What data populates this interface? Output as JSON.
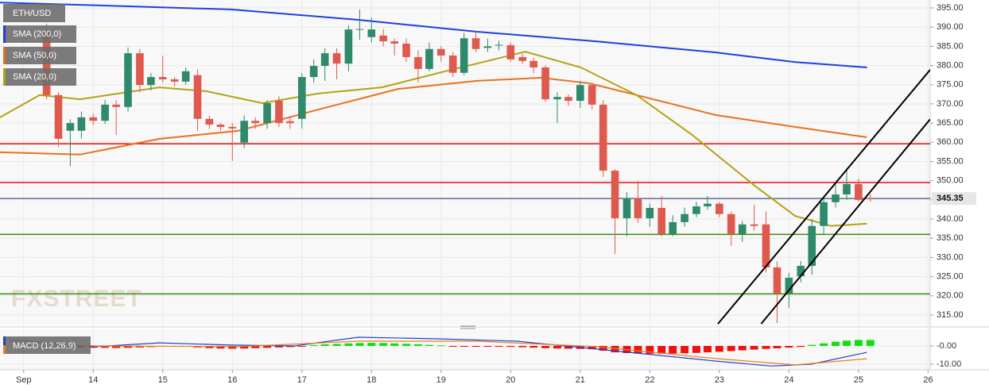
{
  "chart_data": [
    {
      "type": "candlestick",
      "title": "ETH/USD",
      "watermark": "FXSTREET",
      "x": [
        13.33,
        13.5,
        13.67,
        13.83,
        14,
        14.17,
        14.33,
        14.5,
        14.67,
        14.83,
        15,
        15.17,
        15.33,
        15.5,
        15.67,
        15.83,
        16,
        16.17,
        16.33,
        16.5,
        16.67,
        16.83,
        17,
        17.17,
        17.33,
        17.5,
        17.67,
        17.83,
        18,
        18.17,
        18.33,
        18.5,
        18.67,
        18.83,
        19,
        19.17,
        19.33,
        19.5,
        19.67,
        19.83,
        20,
        20.17,
        20.33,
        20.5,
        20.67,
        20.83,
        21,
        21.17,
        21.33,
        21.5,
        21.67,
        21.83,
        22,
        22.17,
        22.33,
        22.5,
        22.67,
        22.83,
        23,
        23.17,
        23.33,
        23.5,
        23.67,
        23.83,
        24,
        24.17,
        24.33,
        24.5,
        24.67,
        24.83,
        25,
        25.17
      ],
      "open": [
        388.8,
        372.3,
        363.0,
        363.0,
        366.5,
        365.6,
        369.8,
        369.2,
        383.2,
        374.9,
        377.0,
        376.4,
        375.8,
        377.5,
        366.1,
        364.6,
        364.0,
        359.9,
        365.6,
        365.0,
        370.8,
        365.5,
        366.1,
        377.0,
        379.9,
        383.2,
        380.5,
        389.3,
        387.4,
        387.8,
        386.3,
        385.7,
        382.2,
        379.1,
        384.3,
        382.6,
        378.1,
        387.1,
        384.6,
        385.2,
        385.3,
        382.2,
        381.2,
        379.5,
        371.2,
        371.8,
        370.8,
        374.9,
        369.8,
        352.6,
        340.2,
        345.4,
        340.2,
        342.9,
        336.1,
        339.2,
        341.3,
        343.3,
        344.0,
        341.3,
        336.1,
        338.6,
        338.6,
        327.4,
        320.6,
        325.1,
        327.8,
        338.2,
        344.4,
        346.4,
        349.1,
        345.4
      ],
      "high": [
        390.9,
        373,
        366,
        368,
        367.5,
        371,
        371,
        384.7,
        384.3,
        378,
        382.6,
        377,
        379.5,
        379,
        367,
        365,
        365,
        367,
        366.5,
        371,
        372,
        366.5,
        378,
        381.6,
        384.5,
        384.5,
        390.5,
        394.6,
        392.5,
        389.5,
        387,
        387,
        384,
        386,
        385,
        383.5,
        388.5,
        389,
        387,
        386.5,
        386,
        383,
        382,
        380,
        373,
        372.5,
        376,
        375.5,
        371,
        353,
        347,
        349.9,
        344,
        346,
        341,
        343,
        344.5,
        346,
        344.5,
        342,
        339.5,
        343.7,
        342,
        329,
        326,
        329,
        340,
        345.5,
        349,
        353.3,
        350.5,
        346.5
      ],
      "low": [
        371.2,
        358.8,
        353.7,
        361,
        364.5,
        364.8,
        361.9,
        368,
        373,
        373.5,
        375.5,
        374.5,
        375,
        363,
        363.5,
        363,
        355.1,
        358.5,
        363.5,
        363.5,
        364,
        363.5,
        363.6,
        375.5,
        376,
        376.4,
        378.5,
        386.7,
        386,
        385,
        382.6,
        381,
        375.6,
        378.5,
        381,
        377,
        377.5,
        383.5,
        383.5,
        384,
        381,
        380.5,
        378,
        370.5,
        365,
        369.5,
        369,
        368.5,
        351,
        330.9,
        335.5,
        339,
        338,
        335.5,
        335.5,
        338,
        340.5,
        342.5,
        340.5,
        333,
        334,
        337,
        326,
        312.9,
        316.9,
        323.5,
        325.5,
        336,
        343,
        345,
        344.5,
        344.5
      ],
      "close": [
        372.3,
        360.9,
        365.0,
        366.5,
        365.6,
        369.8,
        369.2,
        383.2,
        374.9,
        377.0,
        376.4,
        375.8,
        378.5,
        366.1,
        364.6,
        364.0,
        363.6,
        365.6,
        365.0,
        370.2,
        365.0,
        365.0,
        377.0,
        379.9,
        383.2,
        380.5,
        389.4,
        389.5,
        389.4,
        386.3,
        385.7,
        382.2,
        379.1,
        384.3,
        382.6,
        378.1,
        387.1,
        384.3,
        385.0,
        385.4,
        381.6,
        381.2,
        379.5,
        371.2,
        371.8,
        370.8,
        374.9,
        369.8,
        352.6,
        340.2,
        345.4,
        340.2,
        342.9,
        336.1,
        339.2,
        341.3,
        343.3,
        344.0,
        341.3,
        336.1,
        338.6,
        338.2,
        327.4,
        320.6,
        324.7,
        327.8,
        338.2,
        344.4,
        346.4,
        349.1,
        345.0,
        345.35
      ],
      "up_color": "#2f8a6b",
      "down_color": "#df5a4e",
      "xlim": [
        12.66,
        26.03
      ],
      "ylim": [
        312.31,
        397.07
      ],
      "xticks": [
        {
          "value": 13,
          "label": "Sep"
        },
        14,
        15,
        16,
        17,
        18,
        19,
        20,
        21,
        22,
        23,
        24,
        25,
        26
      ],
      "yticks": [
        {
          "value": 315,
          "label": "315.00"
        },
        {
          "value": 320,
          "label": "320.00"
        },
        {
          "value": 325,
          "label": "325.00"
        },
        {
          "value": 330,
          "label": "330.00"
        },
        {
          "value": 335,
          "label": "335.00"
        },
        {
          "value": 340,
          "label": "340.00"
        },
        {
          "value": 345,
          "label": "345.00"
        },
        {
          "value": 350,
          "label": "350.00"
        },
        {
          "value": 355,
          "label": "355.00"
        },
        {
          "value": 360,
          "label": "360.00"
        },
        {
          "value": 365,
          "label": "365.00"
        },
        {
          "value": 370,
          "label": "370.00"
        },
        {
          "value": 375,
          "label": "375.00"
        },
        {
          "value": 380,
          "label": "380.00"
        },
        {
          "value": 385,
          "label": "385.00"
        },
        {
          "value": 390,
          "label": "390.00"
        },
        {
          "value": 395,
          "label": "395.00"
        }
      ],
      "grid": true,
      "lines": [
        {
          "name": "SMA (200,0)",
          "color": "#1f3fe0",
          "x": [
            12.66,
            13.81,
            15.98,
            17.81,
            19.52,
            21.23,
            22.95,
            24.09,
            25.12
          ],
          "values": [
            396.4,
            395.8,
            394.6,
            391.9,
            388.8,
            386.3,
            383.4,
            380.9,
            379.5
          ]
        },
        {
          "name": "SMA (50,0)",
          "color": "#e8711c",
          "x": [
            12.66,
            13.81,
            14.95,
            16.09,
            17.23,
            18.38,
            19.52,
            20.43,
            21.12,
            21.81,
            22.95,
            24.09,
            25.12
          ],
          "values": [
            357.4,
            356.8,
            360.9,
            363.0,
            368.5,
            373.9,
            376.0,
            376.8,
            375.4,
            372.3,
            367.1,
            364.0,
            361.3
          ]
        },
        {
          "name": "SMA (20,0)",
          "color": "#b3a214",
          "x": [
            12.66,
            13.23,
            13.81,
            14.95,
            15.63,
            16.43,
            17.23,
            18.15,
            19.06,
            20.21,
            21.01,
            21.81,
            22.61,
            23.52,
            24.09,
            24.61,
            25.12
          ],
          "values": [
            366.5,
            372.3,
            371.2,
            374.3,
            373.3,
            370.2,
            372.7,
            374.3,
            378.5,
            383.6,
            379.5,
            372.3,
            361.9,
            348.5,
            340.8,
            338.2,
            338.8
          ]
        }
      ],
      "levels": [
        {
          "value": 359.6,
          "color": "#e01010"
        },
        {
          "value": 349.5,
          "color": "#e01010"
        },
        {
          "value": 336.0,
          "color": "#3c8a0c"
        },
        {
          "value": 320.5,
          "color": "#3c8a0c"
        }
      ],
      "trendlines": [
        {
          "x": [
            22.98,
            26.03
          ],
          "values": [
            312.7,
            378.9
          ],
          "color": "#000000"
        },
        {
          "x": [
            23.6,
            26.03
          ],
          "values": [
            312.7,
            366.0
          ],
          "color": "#000000"
        }
      ],
      "last_price": 345.35,
      "last_price_color": "#1b2a6b"
    },
    {
      "type": "macd",
      "title": "MACD (12,26,9)",
      "histogram": [
        -0.5,
        -0.6,
        -0.8,
        -1.0,
        -1,
        -1,
        -1.1,
        -1.0,
        -0.8,
        -0.6,
        -0.3,
        -0.2,
        -0.2,
        -0.8,
        -1.2,
        -1.4,
        -1.5,
        -1.4,
        -1.2,
        -1.0,
        -0.8,
        -0.6,
        -0.3,
        0.5,
        0.9,
        1.1,
        1.4,
        1.6,
        1.7,
        1.6,
        1.4,
        1.2,
        0.9,
        0.6,
        0.3,
        -0.2,
        -0.3,
        -0.3,
        -0.3,
        -0.4,
        -0.5,
        -0.7,
        -0.9,
        -1.2,
        -1.4,
        -1.5,
        -1.6,
        -1.8,
        -2.6,
        -3.5,
        -3.9,
        -4.2,
        -4.3,
        -4.3,
        -4.2,
        -4.0,
        -3.8,
        -3.5,
        -3.2,
        -2.8,
        -2.4,
        -2.0,
        -1.6,
        -1.3,
        -0.9,
        -0.5,
        0.6,
        1.4,
        2.3,
        2.9,
        3.3,
        3.3
      ],
      "positive_color": "#10e010",
      "negative_color": "#f01010",
      "lines": [
        {
          "color": "#2040d0",
          "x": [
            12.78,
            14.03,
            14.95,
            15.98,
            16.89,
            17.81,
            18.95,
            20.09,
            21.23,
            22.95,
            23.75,
            24.32,
            25.12
          ],
          "values": [
            3.5,
            -0.4,
            1.7,
            0.5,
            0,
            4.8,
            3.9,
            2.6,
            -1.7,
            -8.3,
            -11,
            -10,
            -3.5
          ]
        },
        {
          "color": "#e8801c",
          "x": [
            12.78,
            14.03,
            16.09,
            17.81,
            19.52,
            21.23,
            22.95,
            24.09,
            25.12
          ],
          "values": [
            2,
            0,
            -0.4,
            2.6,
            2.6,
            -0.4,
            -6.9,
            -10.4,
            -7
          ]
        }
      ],
      "ylim": [
        -13.04,
        9.13
      ],
      "yticks": [
        {
          "value": 0,
          "label": "-0.00"
        },
        {
          "value": -10,
          "label": "-10.00"
        }
      ]
    }
  ]
}
